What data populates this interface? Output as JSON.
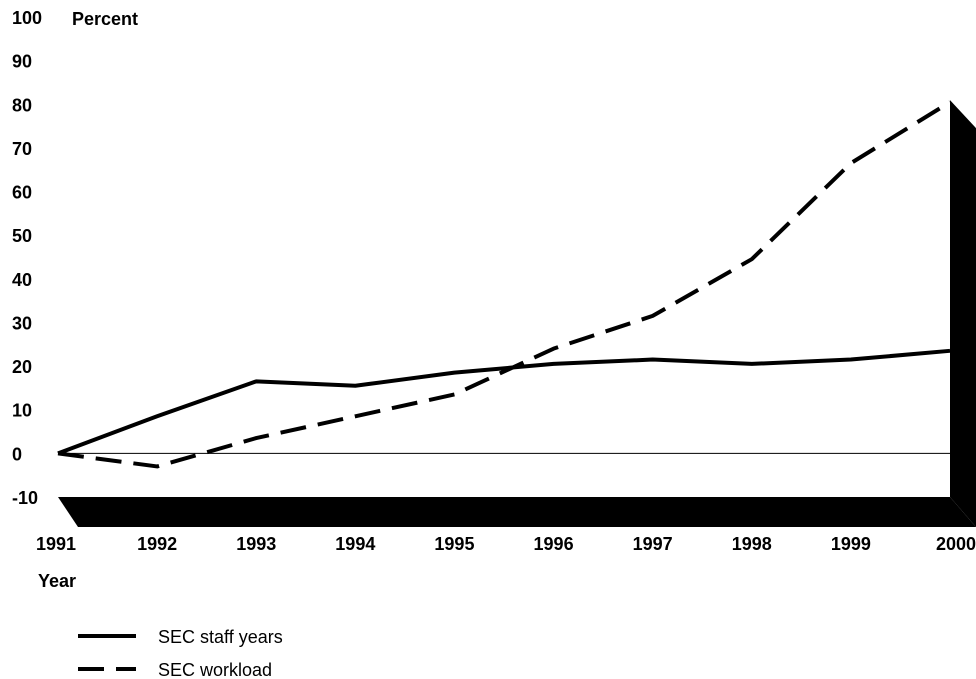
{
  "chart_data": {
    "type": "line",
    "title": "",
    "ylabel": "Percent",
    "xlabel": "Year",
    "ylim": [
      -10,
      100
    ],
    "y_ticks": [
      100,
      90,
      80,
      70,
      60,
      50,
      40,
      30,
      20,
      10,
      0,
      -10
    ],
    "categories": [
      "1991",
      "1992",
      "1993",
      "1994",
      "1995",
      "1996",
      "1997",
      "1998",
      "1999",
      "2000"
    ],
    "series": [
      {
        "name": "SEC staff years",
        "style": "solid",
        "color": "#000000",
        "values": [
          0,
          8.5,
          16.5,
          15.5,
          18.5,
          20.5,
          21.5,
          20.5,
          21.5,
          23.5
        ]
      },
      {
        "name": "SEC workload",
        "style": "dashed",
        "color": "#000000",
        "values": [
          0,
          -3,
          3.5,
          8.5,
          13.5,
          24,
          31.5,
          44.5,
          66.5,
          80.5
        ]
      }
    ],
    "legend_position": "bottom-left",
    "grid": false
  }
}
